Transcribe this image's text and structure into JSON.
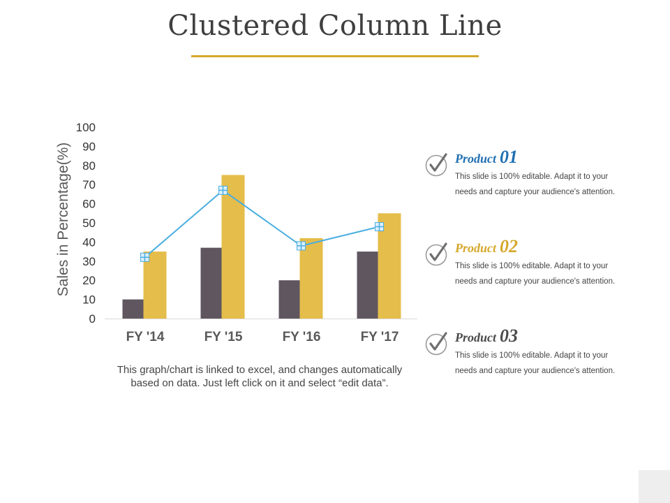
{
  "slide": {
    "title": "Clustered Column Line",
    "caption": "This graph/chart is linked to excel, and changes automatically based on data. Just left click on it and select “edit data”."
  },
  "colors": {
    "accent": "#d4a82a",
    "series1": "#5f5660",
    "series2": "#e5bd4a",
    "line": "#4aaee0",
    "product1": "#1f6fb2",
    "product2": "#d4a82a",
    "product3": "#4a4a4a"
  },
  "chart_data": {
    "type": "bar",
    "combo": "clustered-column-line",
    "categories": [
      "FY '14",
      "FY '15",
      "FY '16",
      "FY '17"
    ],
    "series": [
      {
        "type": "bar",
        "values": [
          10,
          37,
          20,
          35
        ]
      },
      {
        "type": "bar",
        "values": [
          35,
          75,
          42,
          55
        ]
      },
      {
        "type": "line",
        "marker": "cross",
        "values": [
          32,
          67,
          38,
          48
        ]
      }
    ],
    "xlabel": "",
    "ylabel": "Sales in Percentage(%)",
    "ylim": [
      0,
      100
    ],
    "yticks": [
      "0",
      "10",
      "20",
      "30",
      "40",
      "50",
      "60",
      "70",
      "80",
      "90",
      "100"
    ],
    "grid": false,
    "legend": "none"
  },
  "products": [
    {
      "word": "Product",
      "num": "01",
      "desc": "This slide is 100% editable. Adapt it to your needs and capture your audience's attention.",
      "icon": "check-circle-icon"
    },
    {
      "word": "Product",
      "num": "02",
      "desc": "This slide is 100% editable. Adapt it to your needs and capture your audience's attention.",
      "icon": "check-circle-icon"
    },
    {
      "word": "Product",
      "num": "03",
      "desc": "This slide is 100% editable. Adapt it to your needs and capture your audience's attention.",
      "icon": "check-circle-icon"
    }
  ]
}
